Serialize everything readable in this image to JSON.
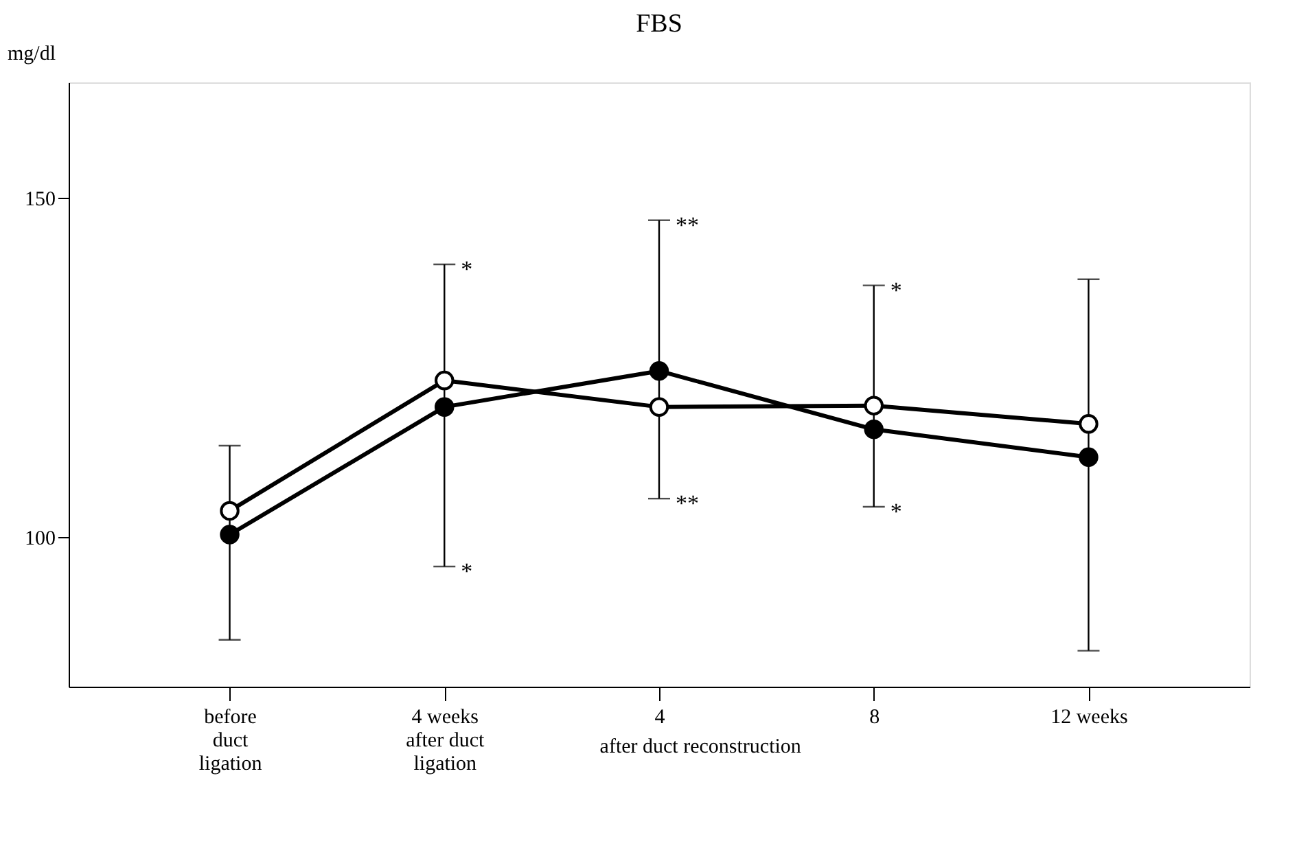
{
  "chart_data": {
    "type": "line",
    "title": "FBS",
    "ylabel": "mg/dl",
    "categories": [
      "before duct ligation",
      "4 weeks after duct ligation",
      "4",
      "8",
      "12 weeks"
    ],
    "series": [
      {
        "color": "#000000",
        "values": [
          100.4,
          119.2,
          124.5,
          115.9,
          111.8
        ],
        "errors": [
          [
            84.9,
            113.5
          ],
          [
            95.7,
            140.2
          ],
          [
            105.7,
            146.7
          ],
          [
            104.5,
            137.1
          ],
          [
            83.3,
            138.0
          ]
        ]
      },
      {
        "color": "#000000",
        "values": [
          103.9,
          123.1,
          119.2,
          119.4,
          116.7
        ]
      }
    ],
    "ylim": [
      78,
      167
    ],
    "yticks": [
      100,
      150
    ],
    "grid": false,
    "marker": "circle",
    "line_style": "solid",
    "annotations": [
      {
        "text": "*",
        "x": "4 weeks after duct ligation",
        "y": 140.2
      },
      {
        "text": "*",
        "x": "4 weeks after duct ligation",
        "y": 95.7
      },
      {
        "text": "**",
        "x": "4",
        "y": 146.7
      },
      {
        "text": "**",
        "x": "4",
        "y": 105.7
      },
      {
        "text": "*",
        "x": "8",
        "y": 137.1
      },
      {
        "text": "*",
        "x": "8",
        "y": 104.5
      },
      "after duct reconstruction"
    ]
  }
}
